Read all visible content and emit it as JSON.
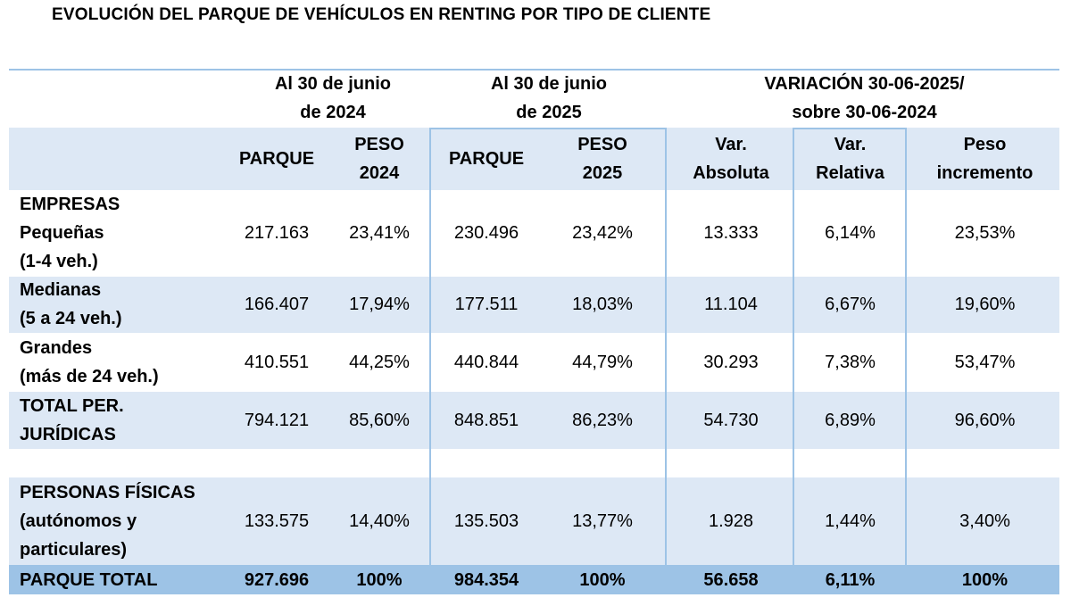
{
  "title": "EVOLUCIÓN DEL PARQUE DE VEHÍCULOS EN RENTING POR TIPO DE CLIENTE",
  "header": {
    "group1": [
      "Al 30 de junio",
      "de 2024"
    ],
    "group2": [
      "Al 30 de junio",
      "de 2025"
    ],
    "group3": [
      "VARIACIÓN 30-06-2025/",
      "sobre 30-06-2024"
    ],
    "columns": [
      [
        "PARQUE"
      ],
      [
        "PESO",
        "2024"
      ],
      [
        "PARQUE"
      ],
      [
        "PESO",
        "2025"
      ],
      [
        "Var.",
        "Absoluta"
      ],
      [
        "Var.",
        "Relativa"
      ],
      [
        "Peso",
        "incremento"
      ]
    ]
  },
  "rows": [
    {
      "label": [
        "EMPRESAS",
        "Pequeñas",
        "(1-4 veh.)"
      ],
      "values": [
        "217.163",
        "23,41%",
        "230.496",
        "23,42%",
        "13.333",
        "6,14%",
        "23,53%"
      ]
    },
    {
      "label": [
        "Medianas",
        "(5 a 24 veh.)"
      ],
      "values": [
        "166.407",
        "17,94%",
        "177.511",
        "18,03%",
        "11.104",
        "6,67%",
        "19,60%"
      ]
    },
    {
      "label": [
        "Grandes",
        "(más de 24 veh.)"
      ],
      "values": [
        "410.551",
        "44,25%",
        "440.844",
        "44,79%",
        "30.293",
        "7,38%",
        "53,47%"
      ]
    },
    {
      "label": [
        "TOTAL PER.",
        "JURÍDICAS"
      ],
      "values": [
        "794.121",
        "85,60%",
        "848.851",
        "86,23%",
        "54.730",
        "6,89%",
        "96,60%"
      ]
    },
    {
      "label": [
        "PERSONAS FÍSICAS",
        "(autónomos y",
        "particulares)"
      ],
      "values": [
        "133.575",
        "14,40%",
        "135.503",
        "13,77%",
        "1.928",
        "1,44%",
        "3,40%"
      ]
    },
    {
      "label": [
        "PARQUE TOTAL"
      ],
      "values": [
        "927.696",
        "100%",
        "984.354",
        "100%",
        "56.658",
        "6,11%",
        "100%"
      ]
    }
  ]
}
